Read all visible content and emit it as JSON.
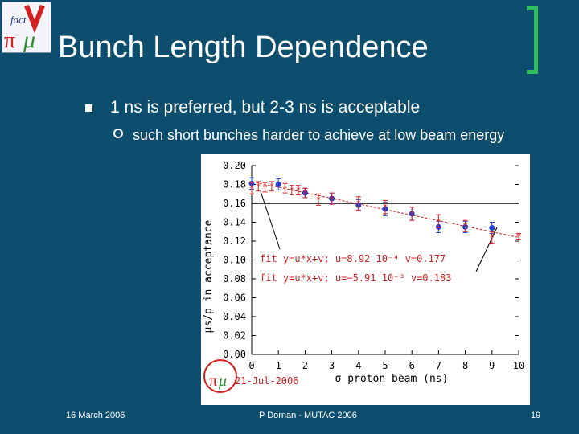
{
  "slide": {
    "title": "Bunch Length Dependence",
    "bullets": [
      {
        "text": "1 ns is preferred, but 2-3 ns is acceptable"
      },
      {
        "text": "such short bunches harder to achieve at low beam energy"
      }
    ],
    "footer": {
      "date": "16 March 2006",
      "author": "P Dornan - MUTAC 2006",
      "page": "19"
    },
    "logo": {
      "text": "fact",
      "pi": "π",
      "mu": "μ"
    }
  },
  "chart_data": {
    "type": "scatter",
    "xlabel": "σ proton beam (ns)",
    "ylabel": "μs/p in acceptance",
    "xlim": [
      0,
      10
    ],
    "ylim": [
      0.0,
      0.2
    ],
    "x_ticks": [
      "0",
      "1",
      "2",
      "3",
      "4",
      "5",
      "6",
      "7",
      "8",
      "9",
      "10"
    ],
    "y_ticks": [
      "0.00",
      "0.02",
      "0.04",
      "0.06",
      "0.08",
      "0.10",
      "0.12",
      "0.14",
      "0.16",
      "0.18",
      "0.20"
    ],
    "reference_line": 0.16,
    "series": [
      {
        "color": "#1f3fd0",
        "marker": "circle",
        "points": [
          {
            "x": 0.0,
            "y": 0.181,
            "err": 0.006
          },
          {
            "x": 1.0,
            "y": 0.18,
            "err": 0.006
          },
          {
            "x": 2.0,
            "y": 0.171,
            "err": 0.005
          },
          {
            "x": 3.0,
            "y": 0.165,
            "err": 0.005
          },
          {
            "x": 4.0,
            "y": 0.158,
            "err": 0.006
          },
          {
            "x": 5.0,
            "y": 0.154,
            "err": 0.007
          },
          {
            "x": 6.0,
            "y": 0.149,
            "err": 0.007
          },
          {
            "x": 7.0,
            "y": 0.135,
            "err": 0.006
          },
          {
            "x": 8.0,
            "y": 0.135,
            "err": 0.006
          },
          {
            "x": 9.0,
            "y": 0.134,
            "err": 0.006
          }
        ],
        "fit_label": "fit  y=u*x+v;  u=8.92  10⁻⁴  v=0.177"
      },
      {
        "color": "#d42020",
        "marker": "star",
        "points": [
          {
            "x": 0.0,
            "y": 0.176,
            "err": 0.006
          },
          {
            "x": 0.25,
            "y": 0.178,
            "err": 0.005
          },
          {
            "x": 0.5,
            "y": 0.177,
            "err": 0.005
          },
          {
            "x": 0.75,
            "y": 0.178,
            "err": 0.005
          },
          {
            "x": 1.25,
            "y": 0.176,
            "err": 0.005
          },
          {
            "x": 1.5,
            "y": 0.174,
            "err": 0.005
          },
          {
            "x": 1.75,
            "y": 0.174,
            "err": 0.005
          },
          {
            "x": 2.0,
            "y": 0.171,
            "err": 0.005
          },
          {
            "x": 2.5,
            "y": 0.164,
            "err": 0.006
          },
          {
            "x": 3.0,
            "y": 0.165,
            "err": 0.006
          },
          {
            "x": 4.0,
            "y": 0.16,
            "err": 0.007
          },
          {
            "x": 5.0,
            "y": 0.156,
            "err": 0.007
          },
          {
            "x": 6.0,
            "y": 0.149,
            "err": 0.007
          },
          {
            "x": 7.0,
            "y": 0.141,
            "err": 0.007
          },
          {
            "x": 8.0,
            "y": 0.136,
            "err": 0.006
          },
          {
            "x": 9.0,
            "y": 0.124,
            "err": 0.006
          },
          {
            "x": 10.0,
            "y": 0.125,
            "err": 0.003
          }
        ],
        "fit_label": "fit  y=u*x+v;  u=−5.91  10⁻³  v=0.183",
        "fit_line": {
          "slope": -0.00591,
          "intercept": 0.183
        }
      }
    ],
    "annotation": "21-Jul-2006"
  }
}
